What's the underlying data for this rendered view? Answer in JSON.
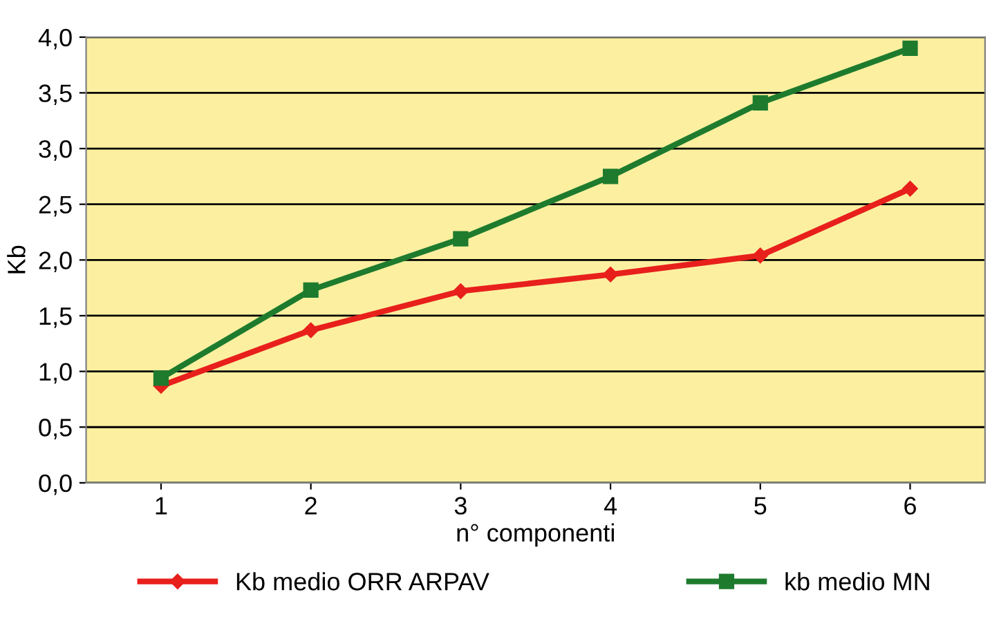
{
  "chart_data": {
    "type": "line",
    "xlabel": "n° componenti",
    "ylabel": "Kb",
    "categories": [
      "1",
      "2",
      "3",
      "4",
      "5",
      "6"
    ],
    "series": [
      {
        "name": "Kb medio ORR ARPAV",
        "color": "#e8201c",
        "marker": "diamond",
        "values": [
          0.87,
          1.37,
          1.72,
          1.87,
          2.04,
          2.64
        ]
      },
      {
        "name": "kb medio MN",
        "color": "#1e7b2e",
        "marker": "square",
        "values": [
          0.94,
          1.73,
          2.19,
          2.75,
          3.41,
          3.9
        ]
      }
    ],
    "ylim": [
      0,
      4
    ],
    "yticks": [
      {
        "value": 0,
        "label": "0,0"
      },
      {
        "value": 0.5,
        "label": "0,5"
      },
      {
        "value": 1,
        "label": "1,0"
      },
      {
        "value": 1.5,
        "label": "1,5"
      },
      {
        "value": 2,
        "label": "2,0"
      },
      {
        "value": 2.5,
        "label": "2,5"
      },
      {
        "value": 3,
        "label": "3,0"
      },
      {
        "value": 3.5,
        "label": "3,5"
      },
      {
        "value": 4,
        "label": "4,0"
      }
    ],
    "grid": "y",
    "legend": "bottom"
  }
}
